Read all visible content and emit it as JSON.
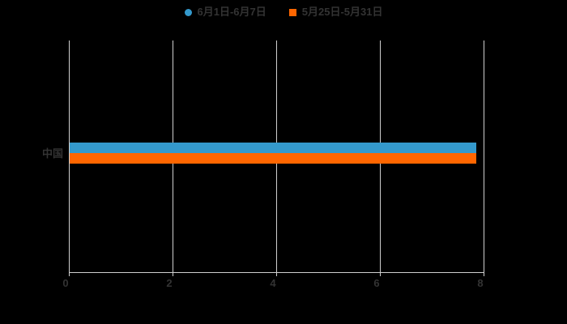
{
  "legend": {
    "items": [
      {
        "label": "6月1日-6月7日",
        "marker": "circle-icon",
        "color": "#3499cc"
      },
      {
        "label": "5月25日-5月31日",
        "marker": "square-icon",
        "color": "#ff6600"
      }
    ]
  },
  "chart_data": {
    "type": "bar",
    "orientation": "horizontal",
    "title": "",
    "categories": [
      "中国"
    ],
    "series": [
      {
        "name": "6月1日-6月7日",
        "color": "#3499cc",
        "values": [
          7.85
        ]
      },
      {
        "name": "5月25日-5月31日",
        "color": "#ff6600",
        "values": [
          7.85
        ]
      }
    ],
    "xlim": [
      0,
      8
    ],
    "x_ticks": [
      0,
      2,
      4,
      6,
      8
    ],
    "grid": true,
    "legend_position": "top",
    "colors": {
      "background": "#000000",
      "text": "#333333",
      "gridline": "#cfcfcf"
    }
  }
}
